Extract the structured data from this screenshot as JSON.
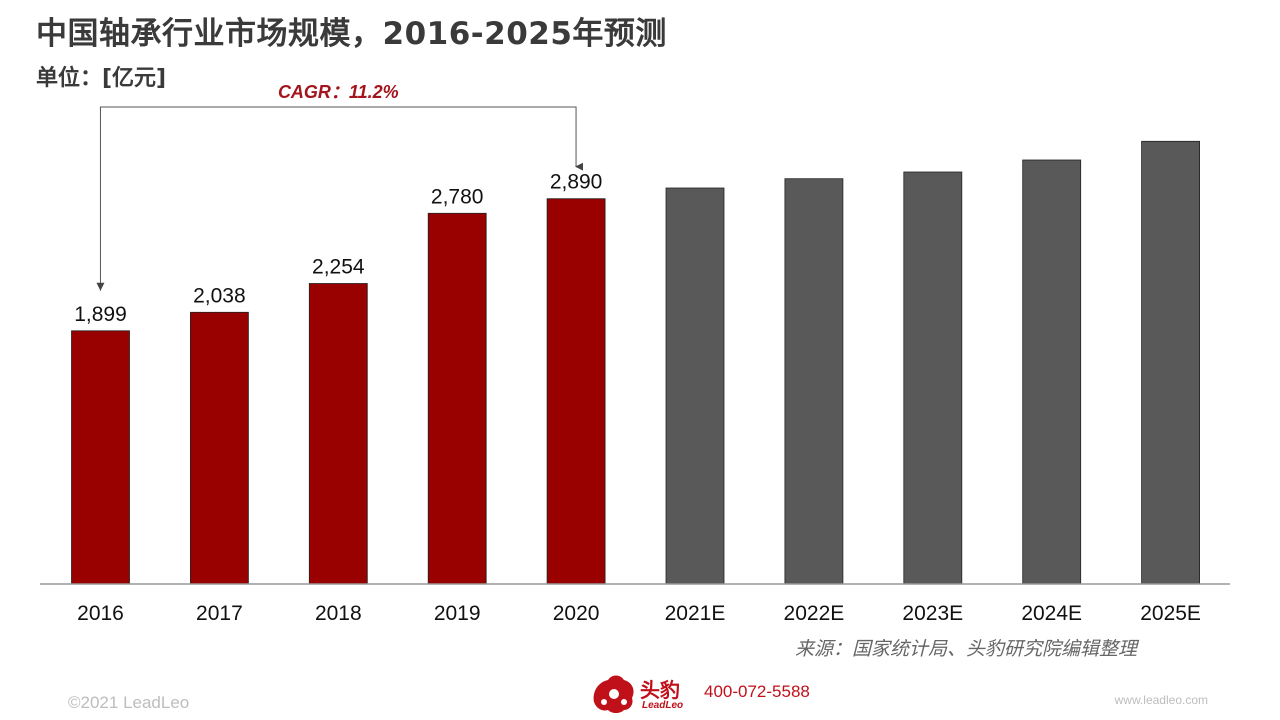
{
  "header": {
    "title": "中国轴承行业市场规模，2016-2025年预测",
    "unit": "单位：[亿元]"
  },
  "chart_data": {
    "type": "bar",
    "categories": [
      "2016",
      "2017",
      "2018",
      "2019",
      "2020",
      "2021E",
      "2022E",
      "2023E",
      "2024E",
      "2025E"
    ],
    "values": [
      1899,
      2038,
      2254,
      2780,
      2890,
      2970,
      3040,
      3090,
      3180,
      3320
    ],
    "data_labels": [
      "1,899",
      "2,038",
      "2,254",
      "2,780",
      "2,890",
      "",
      "",
      "",
      "",
      ""
    ],
    "title": "中国轴承行业市场规模，2016-2025年预测",
    "ylabel": "单位：[亿元]",
    "ylim": [
      0,
      3600
    ],
    "grid": false,
    "colors": {
      "actual": "#990000",
      "forecast": "#595959"
    },
    "annotation": {
      "text": "CAGR：11.2%",
      "from": "2016",
      "to": "2020",
      "color": "#a3141c"
    }
  },
  "footer": {
    "source": "来源：国家统计局、头豹研究院编辑整理",
    "copyright": "©2021 LeadLeo",
    "website": "www.leadleo.com",
    "brand_name": "头豹",
    "brand_sub": "LeadLeo",
    "phone": "400-072-5588",
    "brand_color": "#c0111a",
    "logo_icon": "leopard-head-icon"
  }
}
